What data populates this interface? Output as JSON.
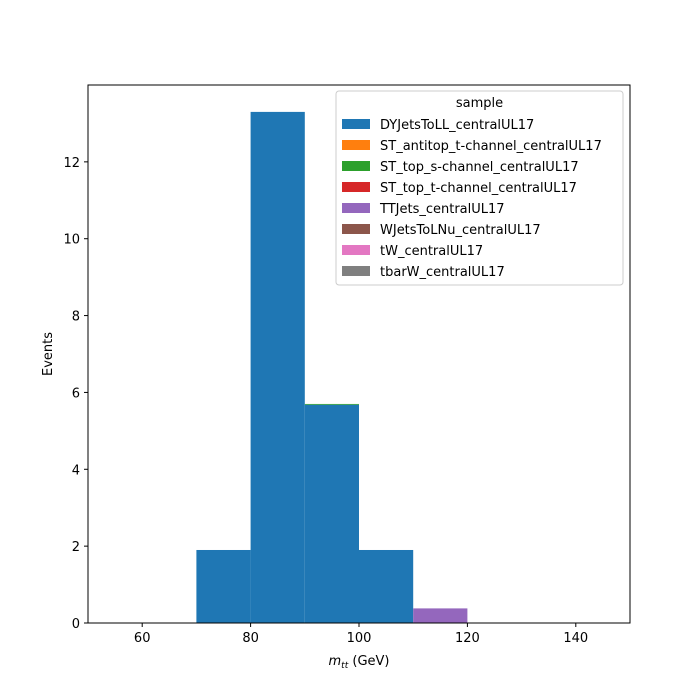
{
  "chart_data": {
    "type": "bar",
    "stacked": true,
    "histogram": true,
    "bin_edges": [
      50,
      60,
      70,
      80,
      90,
      100,
      110,
      120,
      130,
      140,
      150
    ],
    "xlim": [
      50,
      150
    ],
    "ylim": [
      0,
      14
    ],
    "xticks": [
      60,
      80,
      100,
      120,
      140
    ],
    "yticks": [
      0,
      2,
      4,
      6,
      8,
      10,
      12
    ],
    "xlabel_main": "m",
    "xlabel_sub": "tt",
    "xlabel_unit": " (GeV)",
    "ylabel": "Events",
    "legend": {
      "title": "sample",
      "placement": "top-right"
    },
    "grid": false,
    "series": [
      {
        "name": "DYJetsToLL_centralUL17",
        "color": "#1f77b4",
        "values": [
          0,
          0,
          1.9,
          13.3,
          5.68,
          1.9,
          0,
          0,
          0,
          0
        ]
      },
      {
        "name": "ST_antitop_t-channel_centralUL17",
        "color": "#ff7f0e",
        "values": [
          0,
          0,
          0,
          0,
          0,
          0,
          0,
          0,
          0,
          0
        ]
      },
      {
        "name": "ST_top_s-channel_centralUL17",
        "color": "#2ca02c",
        "values": [
          0,
          0,
          0,
          0,
          0.02,
          0,
          0,
          0,
          0,
          0
        ]
      },
      {
        "name": "ST_top_t-channel_centralUL17",
        "color": "#d62728",
        "values": [
          0,
          0,
          0,
          0,
          0,
          0,
          0,
          0,
          0,
          0
        ]
      },
      {
        "name": "TTJets_centralUL17",
        "color": "#9467bd",
        "values": [
          0,
          0,
          0,
          0,
          0,
          0,
          0.38,
          0,
          0,
          0
        ]
      },
      {
        "name": "WJetsToLNu_centralUL17",
        "color": "#8c564b",
        "values": [
          0,
          0,
          0,
          0,
          0,
          0,
          0,
          0,
          0,
          0
        ]
      },
      {
        "name": "tW_centralUL17",
        "color": "#e377c2",
        "values": [
          0,
          0,
          0,
          0,
          0,
          0,
          0,
          0,
          0,
          0
        ]
      },
      {
        "name": "tbarW_centralUL17",
        "color": "#7f7f7f",
        "values": [
          0,
          0,
          0,
          0,
          0,
          0,
          0,
          0,
          0,
          0
        ]
      }
    ]
  }
}
